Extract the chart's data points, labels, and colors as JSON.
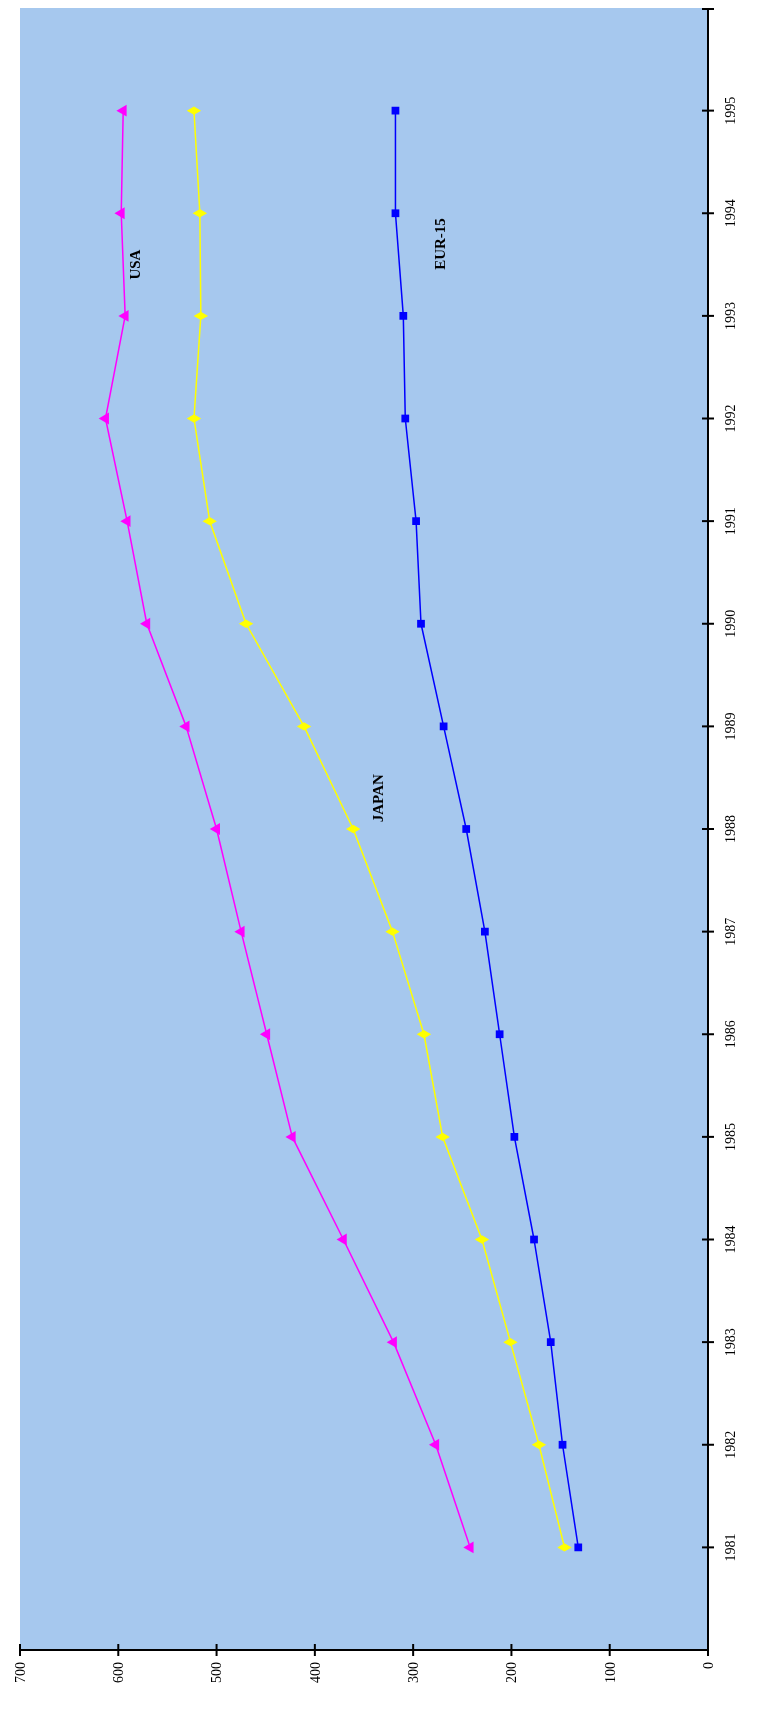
{
  "chart_data": {
    "type": "line",
    "orientation": "horizontal",
    "categories": [
      "1995",
      "1994",
      "1993",
      "1992",
      "1991",
      "1990",
      "1989",
      "1988",
      "1987",
      "1986",
      "1985",
      "1984",
      "1983",
      "1982",
      "1981"
    ],
    "series": [
      {
        "name": "USA",
        "color": "#ff00ff",
        "marker": "triangle",
        "values": [
          595,
          597,
          593,
          613,
          591,
          571,
          531,
          500,
          475,
          449,
          423,
          371,
          320,
          277,
          242
        ]
      },
      {
        "name": "JAPAN",
        "color": "#ffff00",
        "marker": "diamond",
        "values": [
          523,
          517,
          516,
          523,
          507,
          470,
          411,
          361,
          321,
          289,
          270,
          230,
          201,
          172,
          146
        ]
      },
      {
        "name": "EUR-15",
        "color": "#0000ff",
        "marker": "square",
        "values": [
          318,
          318,
          310,
          308,
          297,
          292,
          269,
          246,
          227,
          212,
          197,
          177,
          160,
          148,
          132
        ]
      }
    ],
    "xlim": [
      700,
      0
    ],
    "xticks": [
      700,
      600,
      500,
      400,
      300,
      200,
      100,
      0
    ],
    "grid": false,
    "legend": false
  }
}
